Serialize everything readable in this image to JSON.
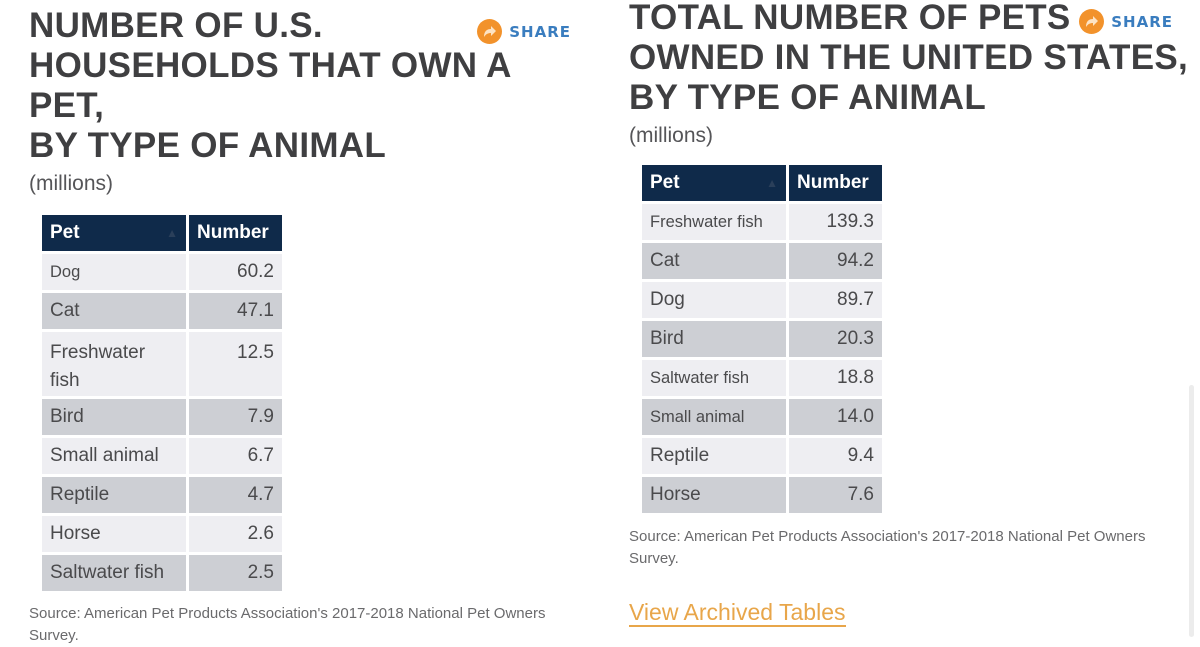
{
  "left": {
    "title": "NUMBER OF U.S.\nHOUSEHOLDS THAT OWN A PET,\nBY TYPE OF ANIMAL",
    "subtitle": "(millions)",
    "share_label": "SHARE",
    "columns": [
      "Pet",
      "Number"
    ],
    "rows": [
      {
        "pet": "Dog",
        "number": "60.2"
      },
      {
        "pet": "Cat",
        "number": "47.1"
      },
      {
        "pet": "Freshwater fish",
        "number": "12.5"
      },
      {
        "pet": "Bird",
        "number": "7.9"
      },
      {
        "pet": "Small animal",
        "number": "6.7"
      },
      {
        "pet": "Reptile",
        "number": "4.7"
      },
      {
        "pet": "Horse",
        "number": "2.6"
      },
      {
        "pet": "Saltwater fish",
        "number": "2.5"
      }
    ],
    "source": "Source: American Pet Products Association's 2017-2018 National Pet Owners Survey."
  },
  "right": {
    "title": "TOTAL NUMBER OF PETS\nOWNED IN THE UNITED STATES,\nBY TYPE OF ANIMAL",
    "subtitle": "(millions)",
    "share_label": "SHARE",
    "columns": [
      "Pet",
      "Number"
    ],
    "rows": [
      {
        "pet": "Freshwater fish",
        "number": "139.3"
      },
      {
        "pet": "Cat",
        "number": "94.2"
      },
      {
        "pet": "Dog",
        "number": "89.7"
      },
      {
        "pet": "Bird",
        "number": "20.3"
      },
      {
        "pet": "Saltwater fish",
        "number": "18.8"
      },
      {
        "pet": "Small animal",
        "number": "14.0"
      },
      {
        "pet": "Reptile",
        "number": "9.4"
      },
      {
        "pet": "Horse",
        "number": "7.6"
      }
    ],
    "source": "Source: American Pet Products Association's 2017-2018 National Pet Owners Survey.",
    "archived_link": "View Archived Tables"
  },
  "icons": {
    "share": "share-arrow-icon",
    "sort": "sort-icon"
  },
  "colors": {
    "header_bg": "#0f2a4a",
    "share_orange": "#f2922b",
    "share_blue": "#3a7dbf",
    "link_orange": "#e8a64a",
    "row_light": "#eeeef2",
    "row_dark": "#cdcfd4"
  }
}
